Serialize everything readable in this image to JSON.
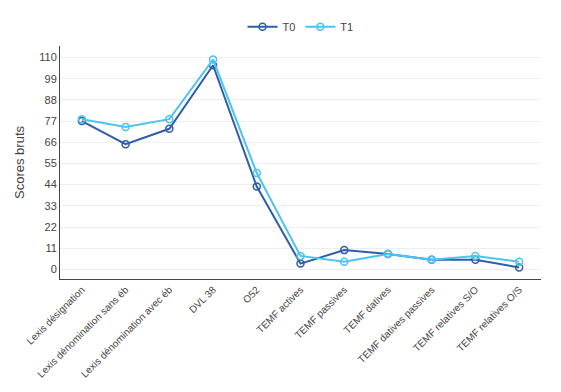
{
  "chart_data": {
    "type": "line",
    "categories": [
      "Lexis désignation",
      "Lexis dénomination sans éb",
      "Lexis dénomination avec éb",
      "DVL 38",
      "O52",
      "TEMF actives",
      "TEMF passives",
      "TEMF datives",
      "TEMF datives passives",
      "TEMF relatives S/O",
      "TEMF relatives O/S"
    ],
    "series": [
      {
        "name": "T0",
        "color": "#2e5ea8",
        "marker": "circle-open",
        "values": [
          77,
          65,
          73,
          106,
          43,
          3,
          10,
          8,
          5,
          5,
          1
        ]
      },
      {
        "name": "T1",
        "color": "#4dc3f0",
        "marker": "circle-open",
        "values": [
          78,
          74,
          78,
          109,
          50,
          7,
          4,
          8,
          5,
          7,
          4
        ]
      }
    ],
    "ylabel": "Scores bruts",
    "ylim": [
      -5,
      116
    ],
    "yticks": [
      0,
      11,
      22,
      33,
      44,
      55,
      66,
      77,
      88,
      99,
      110
    ],
    "grid": true,
    "legend": "top"
  }
}
